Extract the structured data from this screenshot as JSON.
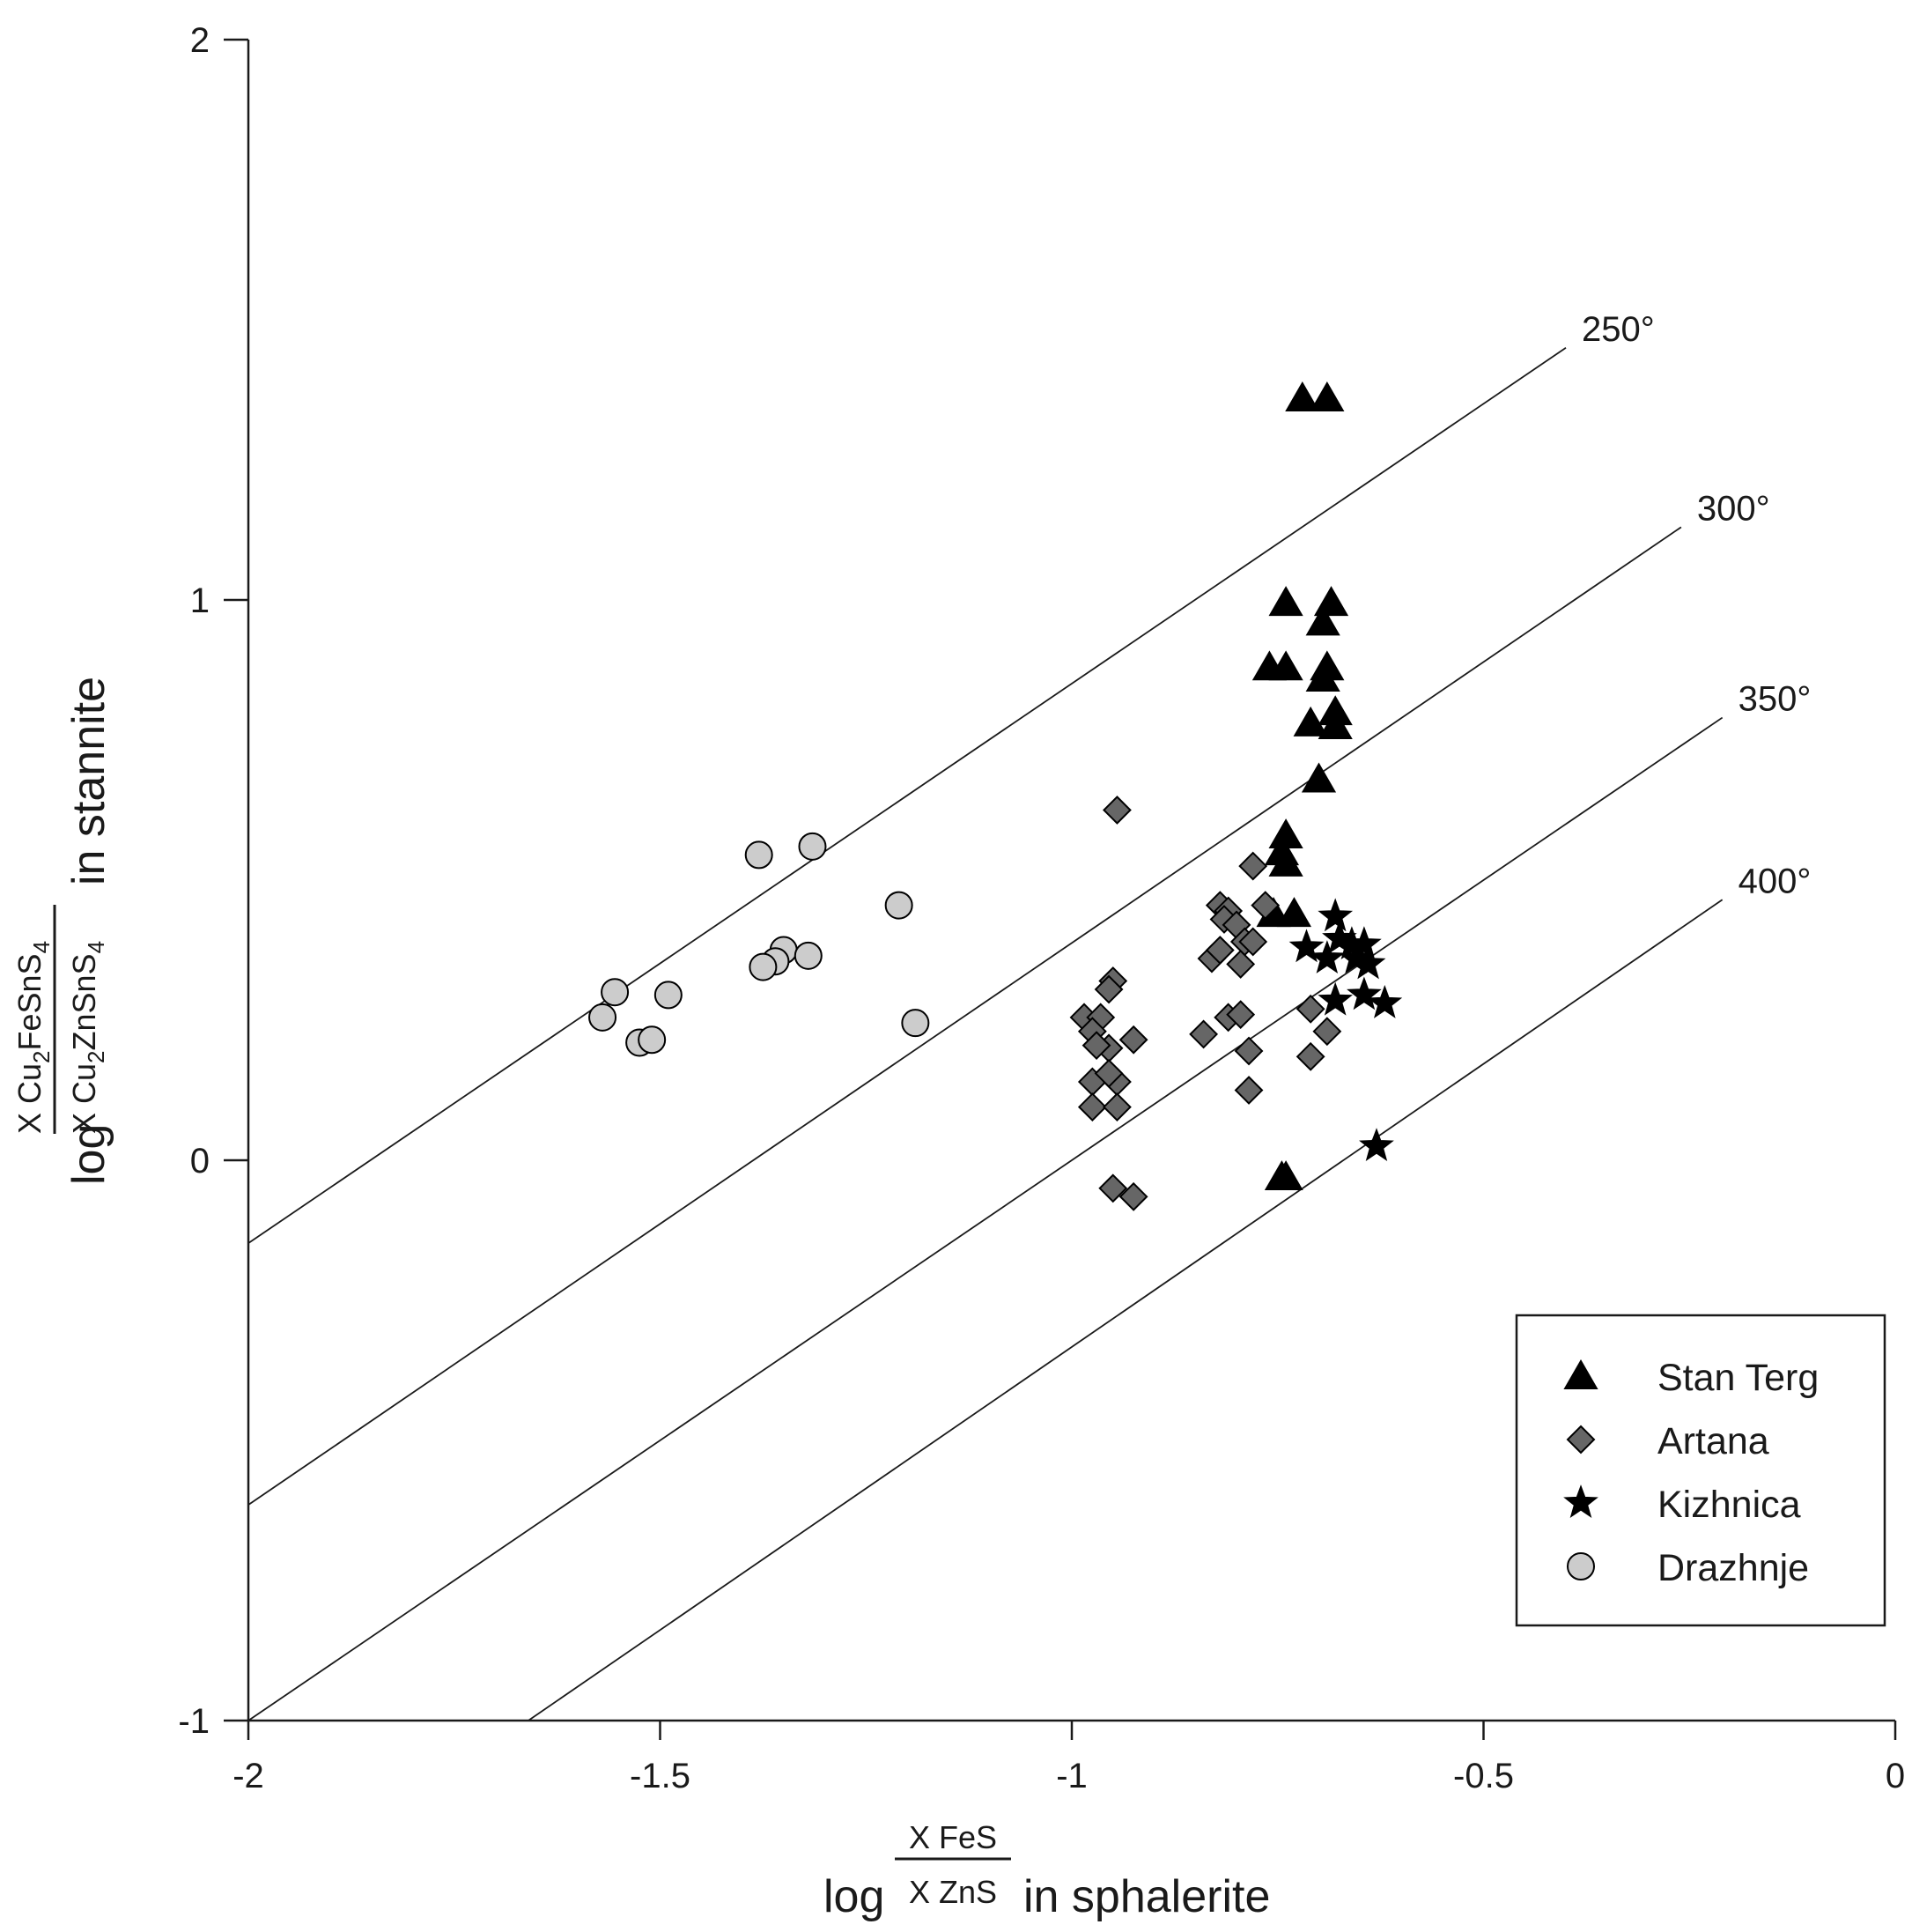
{
  "chart_data": {
    "type": "scatter",
    "title": "",
    "xlim": [
      -2,
      0
    ],
    "ylim": [
      -1,
      2
    ],
    "x_ticks": [
      {
        "value": -2,
        "label": "-2"
      },
      {
        "value": -1.5,
        "label": "-1.5"
      },
      {
        "value": -1,
        "label": "-1"
      },
      {
        "value": -0.5,
        "label": "-0.5"
      },
      {
        "value": 0,
        "label": "0"
      }
    ],
    "y_ticks": [
      {
        "value": -1,
        "label": "-1"
      },
      {
        "value": 0,
        "label": "0"
      },
      {
        "value": 1,
        "label": "1"
      },
      {
        "value": 2,
        "label": "2"
      }
    ],
    "xlabel": {
      "prefix": "log",
      "numerator": "X FeS",
      "denominator": "X ZnS",
      "suffix": "in sphalerite"
    },
    "ylabel": {
      "prefix": "log",
      "numerator": {
        "x": "X",
        "cu": "Cu",
        "cu_sub": "2",
        "mid": "FeSnS",
        "s_sub": "4"
      },
      "denominator": {
        "x": "X",
        "cu": "Cu",
        "cu_sub": "2",
        "mid": "ZnSnS",
        "s_sub": "4"
      },
      "suffix": "in stannite"
    },
    "isotherms": [
      {
        "label": "250°",
        "x1": -2,
        "y1": -0.148,
        "x2": -0.4,
        "y2": 1.45
      },
      {
        "label": "300°",
        "x1": -2,
        "y1": -0.615,
        "x2": -0.26,
        "y2": 1.13
      },
      {
        "label": "350°",
        "x1": -2,
        "y1": -1.0,
        "x2": -0.21,
        "y2": 0.79
      },
      {
        "label": "400°",
        "x1": -1.66,
        "y1": -1.0,
        "x2": -0.21,
        "y2": 0.465
      }
    ],
    "legend": {
      "position": "bottom-right",
      "entries": [
        {
          "name": "Stan Terg",
          "marker": "triangle"
        },
        {
          "name": "Artana",
          "marker": "diamond"
        },
        {
          "name": "Kizhnica",
          "marker": "star"
        },
        {
          "name": "Drazhnje",
          "marker": "circle"
        }
      ]
    },
    "series": [
      {
        "name": "Stan Terg",
        "marker": "triangle",
        "color": "#000000",
        "points": [
          [
            -0.72,
            1.36
          ],
          [
            -0.69,
            1.36
          ],
          [
            -0.74,
            0.995
          ],
          [
            -0.685,
            0.995
          ],
          [
            -0.695,
            0.96
          ],
          [
            -0.76,
            0.88
          ],
          [
            -0.74,
            0.88
          ],
          [
            -0.69,
            0.88
          ],
          [
            -0.695,
            0.86
          ],
          [
            -0.68,
            0.8
          ],
          [
            -0.71,
            0.78
          ],
          [
            -0.68,
            0.775
          ],
          [
            -0.7,
            0.68
          ],
          [
            -0.74,
            0.58
          ],
          [
            -0.745,
            0.55
          ],
          [
            -0.74,
            0.53
          ],
          [
            -0.755,
            0.44
          ],
          [
            -0.73,
            0.44
          ],
          [
            -0.745,
            -0.03
          ],
          [
            -0.74,
            -0.03
          ]
        ]
      },
      {
        "name": "Artana",
        "marker": "diamond",
        "color": "#666666",
        "points": [
          [
            -0.945,
            0.625
          ],
          [
            -0.78,
            0.525
          ],
          [
            -0.82,
            0.455
          ],
          [
            -0.81,
            0.445
          ],
          [
            -0.765,
            0.455
          ],
          [
            -0.815,
            0.43
          ],
          [
            -0.8,
            0.42
          ],
          [
            -0.79,
            0.39
          ],
          [
            -0.78,
            0.39
          ],
          [
            -0.83,
            0.36
          ],
          [
            -0.82,
            0.375
          ],
          [
            -0.795,
            0.35
          ],
          [
            -0.95,
            0.32
          ],
          [
            -0.955,
            0.305
          ],
          [
            -0.985,
            0.255
          ],
          [
            -0.965,
            0.255
          ],
          [
            -0.975,
            0.23
          ],
          [
            -0.955,
            0.2
          ],
          [
            -0.925,
            0.215
          ],
          [
            -0.97,
            0.205
          ],
          [
            -0.81,
            0.255
          ],
          [
            -0.795,
            0.26
          ],
          [
            -0.84,
            0.225
          ],
          [
            -0.785,
            0.195
          ],
          [
            -0.71,
            0.27
          ],
          [
            -0.69,
            0.23
          ],
          [
            -0.71,
            0.185
          ],
          [
            -0.975,
            0.14
          ],
          [
            -0.945,
            0.14
          ],
          [
            -0.955,
            0.155
          ],
          [
            -0.975,
            0.095
          ],
          [
            -0.945,
            0.095
          ],
          [
            -0.785,
            0.125
          ],
          [
            -0.95,
            -0.05
          ],
          [
            -0.925,
            -0.065
          ]
        ]
      },
      {
        "name": "Kizhnica",
        "marker": "star",
        "color": "#000000",
        "points": [
          [
            -0.68,
            0.435
          ],
          [
            -0.675,
            0.395
          ],
          [
            -0.66,
            0.385
          ],
          [
            -0.645,
            0.385
          ],
          [
            -0.715,
            0.38
          ],
          [
            -0.69,
            0.36
          ],
          [
            -0.655,
            0.36
          ],
          [
            -0.64,
            0.35
          ],
          [
            -0.645,
            0.295
          ],
          [
            -0.62,
            0.28
          ],
          [
            -0.68,
            0.285
          ],
          [
            -0.63,
            0.025
          ]
        ]
      },
      {
        "name": "Drazhnje",
        "marker": "circle",
        "color": "#cccccc",
        "points": [
          [
            -1.38,
            0.545
          ],
          [
            -1.315,
            0.56
          ],
          [
            -1.21,
            0.455
          ],
          [
            -1.35,
            0.375
          ],
          [
            -1.36,
            0.355
          ],
          [
            -1.375,
            0.345
          ],
          [
            -1.32,
            0.365
          ],
          [
            -1.555,
            0.3
          ],
          [
            -1.57,
            0.255
          ],
          [
            -1.49,
            0.295
          ],
          [
            -1.525,
            0.21
          ],
          [
            -1.51,
            0.215
          ],
          [
            -1.19,
            0.245
          ]
        ]
      }
    ]
  }
}
